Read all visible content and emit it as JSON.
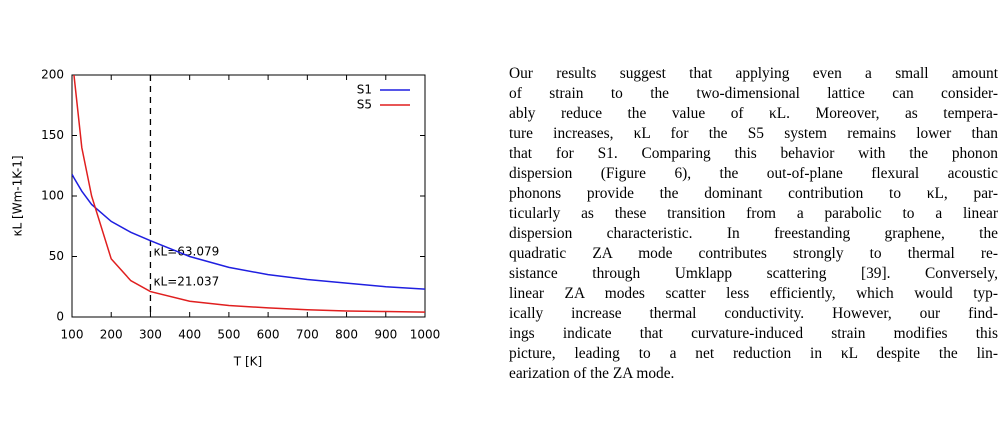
{
  "chart_data": {
    "type": "line",
    "xlabel": "T [K]",
    "ylabel": "κL [Wm-1K-1]",
    "x": [
      100,
      105,
      125,
      150,
      200,
      250,
      300,
      400,
      500,
      600,
      700,
      800,
      900,
      1000
    ],
    "series": [
      {
        "name": "S1",
        "color": "#1f1fe0",
        "values": [
          118,
          115,
          104,
          93,
          79,
          70,
          63.079,
          50,
          41,
          35,
          31,
          28,
          25,
          23
        ]
      },
      {
        "name": "S5",
        "color": "#e01f1f",
        "values": [
          null,
          200,
          140,
          100,
          48,
          30,
          21.037,
          13,
          9.5,
          7.5,
          6,
          5,
          4.5,
          4
        ]
      }
    ],
    "xlim": [
      100,
      1000
    ],
    "ylim": [
      0,
      200
    ],
    "xticks": [
      100,
      200,
      300,
      400,
      500,
      600,
      700,
      800,
      900,
      1000
    ],
    "yticks": [
      0,
      50,
      100,
      150,
      200
    ],
    "vline": 300,
    "annotations": [
      "κL=63.079",
      "κL=21.037"
    ],
    "legend": "upper-right"
  },
  "text": {
    "lines": [
      "Our results suggest that applying even a small amount",
      "of strain to the two-dimensional lattice can consider-",
      "ably reduce the value of κL.  Moreover, as tempera-",
      "ture increases, κL for the S5 system remains lower than",
      "that for S1. Comparing this behavior with the phonon",
      "dispersion (Figure 6), the out-of-plane flexural acoustic",
      "phonons provide the dominant contribution to κL, par-",
      "ticularly as these transition from a parabolic to a linear",
      "dispersion characteristic. In freestanding graphene, the",
      "quadratic ZA mode contributes strongly to thermal re-",
      "sistance through Umklapp scattering [39]. Conversely,",
      "linear ZA modes scatter less efficiently, which would typ-",
      "ically increase thermal conductivity. However, our find-",
      "ings indicate that curvature-induced strain modifies this",
      "picture, leading to a net reduction in κL despite the lin-",
      "earization of the ZA mode."
    ]
  }
}
